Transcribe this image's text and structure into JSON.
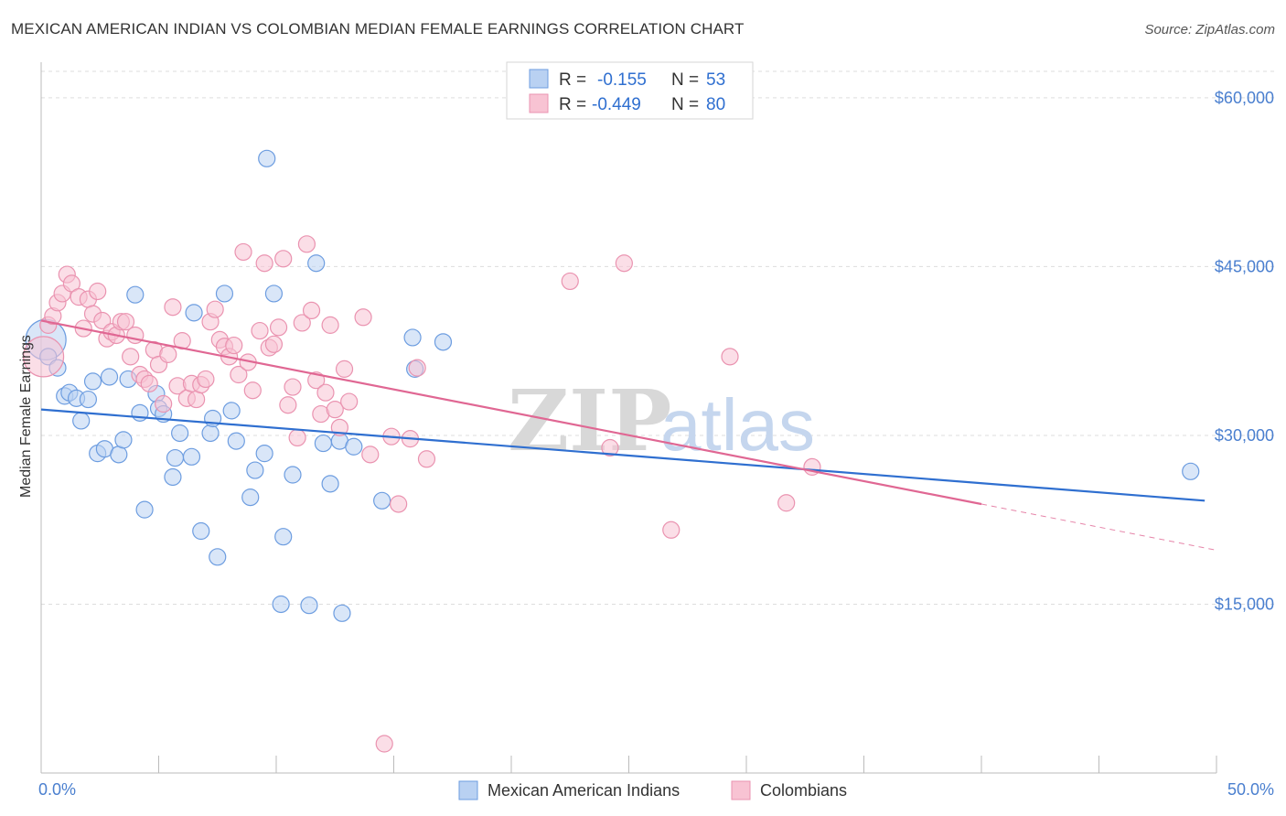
{
  "title": "MEXICAN AMERICAN INDIAN VS COLOMBIAN MEDIAN FEMALE EARNINGS CORRELATION CHART",
  "source": "Source: ZipAtlas.com",
  "watermark": {
    "zip": "ZIP",
    "atlas": "atlas"
  },
  "colors": {
    "blue_fill": "#b9d1f2",
    "blue_stroke": "#6d9de0",
    "blue_line": "#2f6fd0",
    "pink_fill": "#f8c3d3",
    "pink_stroke": "#ea93b0",
    "pink_line": "#e06793",
    "grid": "#dddddd",
    "axis_text": "#4a7fcf"
  },
  "legend": {
    "rows": [
      {
        "r_label": "R =",
        "r_value": "-0.155",
        "n_label": "N =",
        "n_value": "53",
        "series": "blue"
      },
      {
        "r_label": "R =",
        "r_value": "-0.449",
        "n_label": "N =",
        "n_value": "80",
        "series": "pink"
      }
    ]
  },
  "bottom_legend": [
    "Mexican American Indians",
    "Colombians"
  ],
  "chart_data": {
    "type": "scatter",
    "title": "MEXICAN AMERICAN INDIAN VS COLOMBIAN MEDIAN FEMALE EARNINGS CORRELATION CHART",
    "xlabel": "",
    "ylabel": "Median Female Earnings",
    "xlim": [
      0,
      50
    ],
    "ylim": [
      0,
      63000
    ],
    "x_tick_labels": [
      "0.0%",
      "50.0%"
    ],
    "y_ticks": [
      15000,
      30000,
      45000,
      60000
    ],
    "y_tick_labels": [
      "$15,000",
      "$30,000",
      "$45,000",
      "$60,000"
    ],
    "grid": true,
    "legend_position": "top-center",
    "series": [
      {
        "name": "Mexican American Indians",
        "color": "blue",
        "r": -0.155,
        "n": 53,
        "trend": {
          "x": [
            0,
            49.5
          ],
          "y": [
            32300,
            24200
          ]
        },
        "points": [
          {
            "x": 0.2,
            "y": 38500,
            "size": "large"
          },
          {
            "x": 0.3,
            "y": 37000
          },
          {
            "x": 0.7,
            "y": 36000
          },
          {
            "x": 1.0,
            "y": 33500
          },
          {
            "x": 1.2,
            "y": 33800
          },
          {
            "x": 1.5,
            "y": 33300
          },
          {
            "x": 1.7,
            "y": 31300
          },
          {
            "x": 2.0,
            "y": 33200
          },
          {
            "x": 2.2,
            "y": 34800
          },
          {
            "x": 2.4,
            "y": 28400
          },
          {
            "x": 2.7,
            "y": 28800
          },
          {
            "x": 2.9,
            "y": 35200
          },
          {
            "x": 3.3,
            "y": 28300
          },
          {
            "x": 3.5,
            "y": 29600
          },
          {
            "x": 3.7,
            "y": 35000
          },
          {
            "x": 4.0,
            "y": 42500
          },
          {
            "x": 4.2,
            "y": 32000
          },
          {
            "x": 4.4,
            "y": 23400
          },
          {
            "x": 4.9,
            "y": 33700
          },
          {
            "x": 5.0,
            "y": 32400
          },
          {
            "x": 5.2,
            "y": 31900
          },
          {
            "x": 5.6,
            "y": 26300
          },
          {
            "x": 5.7,
            "y": 28000
          },
          {
            "x": 5.9,
            "y": 30200
          },
          {
            "x": 6.4,
            "y": 28100
          },
          {
            "x": 6.5,
            "y": 40900
          },
          {
            "x": 6.8,
            "y": 21500
          },
          {
            "x": 7.2,
            "y": 30200
          },
          {
            "x": 7.3,
            "y": 31500
          },
          {
            "x": 7.5,
            "y": 19200
          },
          {
            "x": 7.8,
            "y": 42600
          },
          {
            "x": 8.1,
            "y": 32200
          },
          {
            "x": 8.3,
            "y": 29500
          },
          {
            "x": 8.9,
            "y": 24500
          },
          {
            "x": 9.1,
            "y": 26900
          },
          {
            "x": 9.5,
            "y": 28400
          },
          {
            "x": 9.6,
            "y": 54600
          },
          {
            "x": 9.9,
            "y": 42600
          },
          {
            "x": 10.2,
            "y": 15000
          },
          {
            "x": 10.3,
            "y": 21000
          },
          {
            "x": 10.7,
            "y": 26500
          },
          {
            "x": 11.4,
            "y": 14900
          },
          {
            "x": 11.7,
            "y": 45300
          },
          {
            "x": 12.0,
            "y": 29300
          },
          {
            "x": 12.3,
            "y": 25700
          },
          {
            "x": 12.7,
            "y": 29500
          },
          {
            "x": 12.8,
            "y": 14200
          },
          {
            "x": 13.3,
            "y": 29000
          },
          {
            "x": 14.5,
            "y": 24200
          },
          {
            "x": 15.8,
            "y": 38700
          },
          {
            "x": 15.9,
            "y": 35900
          },
          {
            "x": 17.1,
            "y": 38300
          },
          {
            "x": 48.9,
            "y": 26800
          }
        ]
      },
      {
        "name": "Colombians",
        "color": "pink",
        "r": -0.449,
        "n": 80,
        "trend": {
          "x": [
            0,
            40
          ],
          "y": [
            40200,
            23900
          ]
        },
        "trend_dashed": {
          "x": [
            40,
            50
          ],
          "y": [
            23900,
            19800
          ]
        },
        "points": [
          {
            "x": 0.1,
            "y": 37000,
            "size": "large"
          },
          {
            "x": 0.3,
            "y": 39800
          },
          {
            "x": 0.5,
            "y": 40600
          },
          {
            "x": 0.7,
            "y": 41800
          },
          {
            "x": 0.9,
            "y": 42600
          },
          {
            "x": 1.1,
            "y": 44300
          },
          {
            "x": 1.3,
            "y": 43500
          },
          {
            "x": 1.6,
            "y": 42300
          },
          {
            "x": 1.8,
            "y": 39500
          },
          {
            "x": 2.0,
            "y": 42100
          },
          {
            "x": 2.2,
            "y": 40800
          },
          {
            "x": 2.4,
            "y": 42800
          },
          {
            "x": 2.6,
            "y": 40200
          },
          {
            "x": 2.8,
            "y": 38600
          },
          {
            "x": 3.0,
            "y": 39200
          },
          {
            "x": 3.2,
            "y": 38900
          },
          {
            "x": 3.4,
            "y": 40100
          },
          {
            "x": 3.6,
            "y": 40100
          },
          {
            "x": 3.8,
            "y": 37000
          },
          {
            "x": 4.0,
            "y": 38900
          },
          {
            "x": 4.2,
            "y": 35400
          },
          {
            "x": 4.4,
            "y": 35000
          },
          {
            "x": 4.6,
            "y": 34600
          },
          {
            "x": 4.8,
            "y": 37600
          },
          {
            "x": 5.0,
            "y": 36300
          },
          {
            "x": 5.2,
            "y": 32800
          },
          {
            "x": 5.4,
            "y": 37200
          },
          {
            "x": 5.6,
            "y": 41400
          },
          {
            "x": 5.8,
            "y": 34400
          },
          {
            "x": 6.0,
            "y": 38400
          },
          {
            "x": 6.2,
            "y": 33300
          },
          {
            "x": 6.4,
            "y": 34600
          },
          {
            "x": 6.6,
            "y": 33200
          },
          {
            "x": 6.8,
            "y": 34500
          },
          {
            "x": 7.0,
            "y": 35000
          },
          {
            "x": 7.2,
            "y": 40100
          },
          {
            "x": 7.4,
            "y": 41200
          },
          {
            "x": 7.6,
            "y": 38500
          },
          {
            "x": 7.8,
            "y": 37900
          },
          {
            "x": 8.0,
            "y": 37000
          },
          {
            "x": 8.2,
            "y": 38000
          },
          {
            "x": 8.4,
            "y": 35400
          },
          {
            "x": 8.6,
            "y": 46300
          },
          {
            "x": 8.8,
            "y": 36500
          },
          {
            "x": 9.0,
            "y": 34000
          },
          {
            "x": 9.3,
            "y": 39300
          },
          {
            "x": 9.5,
            "y": 45300
          },
          {
            "x": 9.7,
            "y": 37800
          },
          {
            "x": 9.9,
            "y": 38100
          },
          {
            "x": 10.1,
            "y": 39600
          },
          {
            "x": 10.3,
            "y": 45700
          },
          {
            "x": 10.5,
            "y": 32700
          },
          {
            "x": 10.7,
            "y": 34300
          },
          {
            "x": 10.9,
            "y": 29800
          },
          {
            "x": 11.1,
            "y": 40000
          },
          {
            "x": 11.3,
            "y": 47000
          },
          {
            "x": 11.5,
            "y": 41100
          },
          {
            "x": 11.7,
            "y": 34900
          },
          {
            "x": 11.9,
            "y": 31900
          },
          {
            "x": 12.1,
            "y": 33800
          },
          {
            "x": 12.3,
            "y": 39800
          },
          {
            "x": 12.5,
            "y": 32300
          },
          {
            "x": 12.7,
            "y": 30700
          },
          {
            "x": 12.9,
            "y": 35900
          },
          {
            "x": 13.1,
            "y": 33000
          },
          {
            "x": 13.7,
            "y": 40500
          },
          {
            "x": 14.0,
            "y": 28300
          },
          {
            "x": 14.6,
            "y": 2600
          },
          {
            "x": 14.9,
            "y": 29900
          },
          {
            "x": 15.2,
            "y": 23900
          },
          {
            "x": 15.7,
            "y": 29700
          },
          {
            "x": 16.0,
            "y": 36000
          },
          {
            "x": 16.4,
            "y": 27900
          },
          {
            "x": 22.5,
            "y": 43700
          },
          {
            "x": 24.2,
            "y": 28900
          },
          {
            "x": 24.8,
            "y": 45300
          },
          {
            "x": 26.8,
            "y": 21600
          },
          {
            "x": 29.3,
            "y": 37000
          },
          {
            "x": 31.7,
            "y": 24000
          },
          {
            "x": 32.8,
            "y": 27200
          }
        ]
      }
    ]
  }
}
